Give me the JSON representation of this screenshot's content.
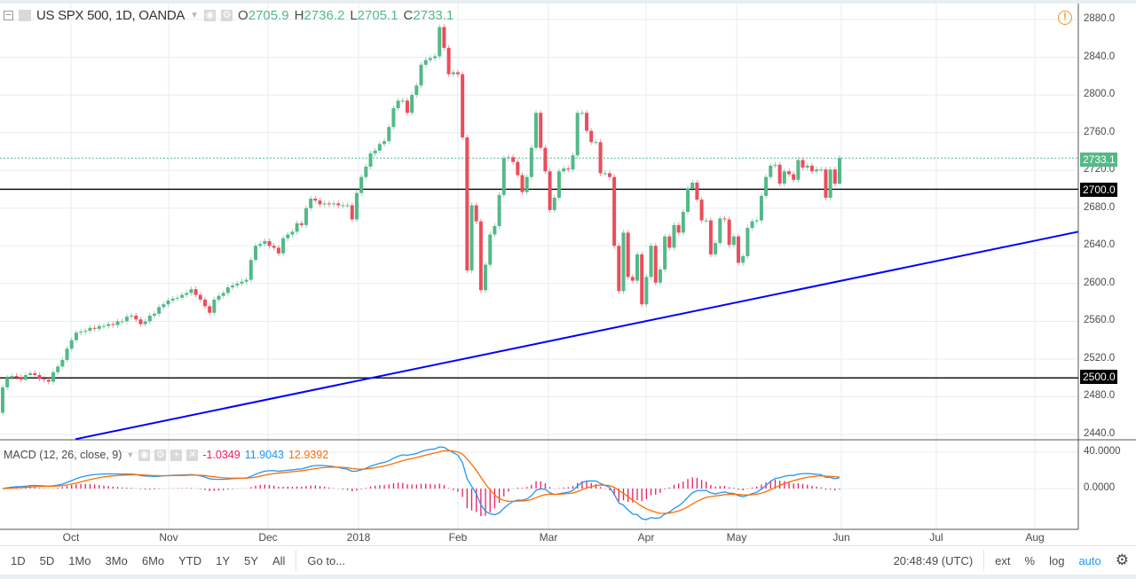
{
  "symbol": {
    "title": "US SPX 500, 1D, OANDA",
    "open_label": "O",
    "open": "2705.9",
    "high_label": "H",
    "high": "2736.2",
    "low_label": "L",
    "low": "2705.1",
    "close_label": "C",
    "close": "2733.1"
  },
  "macd": {
    "title": "MACD (12, 26, close, 9)",
    "histogram": "-1.0349",
    "macd": "11.9043",
    "signal": "12.9392"
  },
  "colors": {
    "up": "#53b987",
    "down": "#eb4d5c",
    "macd_line": "#2196f3",
    "signal_line": "#ff6d00",
    "histogram": "#e91e63",
    "trendline": "#0000ff",
    "level_line": "#000000"
  },
  "price_axis": [
    "2880.0",
    "2840.0",
    "2800.0",
    "2760.0",
    "2720.0",
    "2680.0",
    "2640.0",
    "2600.0",
    "2560.0",
    "2520.0",
    "2480.0",
    "2440.0"
  ],
  "macd_axis": [
    "40.0000",
    "0.0000"
  ],
  "price_tags": {
    "last": "2733.1",
    "level_1": "2700.0",
    "level_2": "2500.0"
  },
  "date_axis": [
    "Oct",
    "Nov",
    "Dec",
    "2018",
    "Feb",
    "Mar",
    "Apr",
    "May",
    "Jun",
    "Jul",
    "Aug"
  ],
  "chart_data": {
    "type": "candlestick",
    "interval": "1D",
    "closes": [
      2490,
      2500,
      2502,
      2501,
      2498,
      2503,
      2505,
      2503,
      2499,
      2498,
      2496,
      2506,
      2512,
      2519,
      2531,
      2540,
      2548,
      2549,
      2550,
      2553,
      2552,
      2555,
      2555,
      2557,
      2556,
      2560,
      2560,
      2565,
      2566,
      2562,
      2557,
      2560,
      2566,
      2568,
      2575,
      2578,
      2582,
      2584,
      2585,
      2588,
      2590,
      2594,
      2588,
      2583,
      2576,
      2569,
      2583,
      2587,
      2590,
      2596,
      2598,
      2600,
      2602,
      2604,
      2625,
      2640,
      2642,
      2645,
      2640,
      2638,
      2632,
      2648,
      2652,
      2655,
      2664,
      2662,
      2680,
      2690,
      2688,
      2684,
      2685,
      2684,
      2685,
      2683,
      2683,
      2683,
      2668,
      2696,
      2713,
      2724,
      2738,
      2741,
      2748,
      2751,
      2766,
      2786,
      2794,
      2794,
      2781,
      2800,
      2810,
      2832,
      2837,
      2839,
      2841,
      2872,
      2850,
      2822,
      2824,
      2822,
      2755,
      2614,
      2683,
      2666,
      2593,
      2620,
      2652,
      2661,
      2694,
      2733,
      2734,
      2729,
      2715,
      2697,
      2713,
      2744,
      2781,
      2744,
      2719,
      2678,
      2691,
      2719,
      2722,
      2721,
      2736,
      2781,
      2781,
      2762,
      2750,
      2750,
      2717,
      2717,
      2713,
      2640,
      2592,
      2654,
      2607,
      2603,
      2631,
      2578,
      2607,
      2640,
      2601,
      2615,
      2650,
      2638,
      2662,
      2654,
      2676,
      2701,
      2707,
      2689,
      2667,
      2667,
      2631,
      2643,
      2669,
      2668,
      2641,
      2650,
      2622,
      2629,
      2659,
      2666,
      2667,
      2693,
      2713,
      2725,
      2726,
      2706,
      2719,
      2716,
      2710,
      2731,
      2723,
      2725,
      2719,
      2721,
      2721,
      2691,
      2721,
      2705.9,
      2733.1
    ],
    "first_open": 2463,
    "last_candle": {
      "open": 2705.9,
      "high": 2736.2,
      "low": 2705.1,
      "close": 2733.1
    },
    "horizontal_levels": [
      2700,
      2500
    ],
    "trendline": {
      "start_price": 2435,
      "end_price": 2655
    },
    "ylim": [
      2430,
      2890
    ],
    "macd_params": [
      12,
      26,
      9
    ]
  },
  "toolbar": {
    "ranges": [
      "1D",
      "5D",
      "1Mo",
      "3Mo",
      "6Mo",
      "YTD",
      "1Y",
      "5Y",
      "All"
    ],
    "goto": "Go to...",
    "time": "20:48:49 (UTC)",
    "ext": "ext",
    "percent": "%",
    "log": "log",
    "auto": "auto"
  }
}
